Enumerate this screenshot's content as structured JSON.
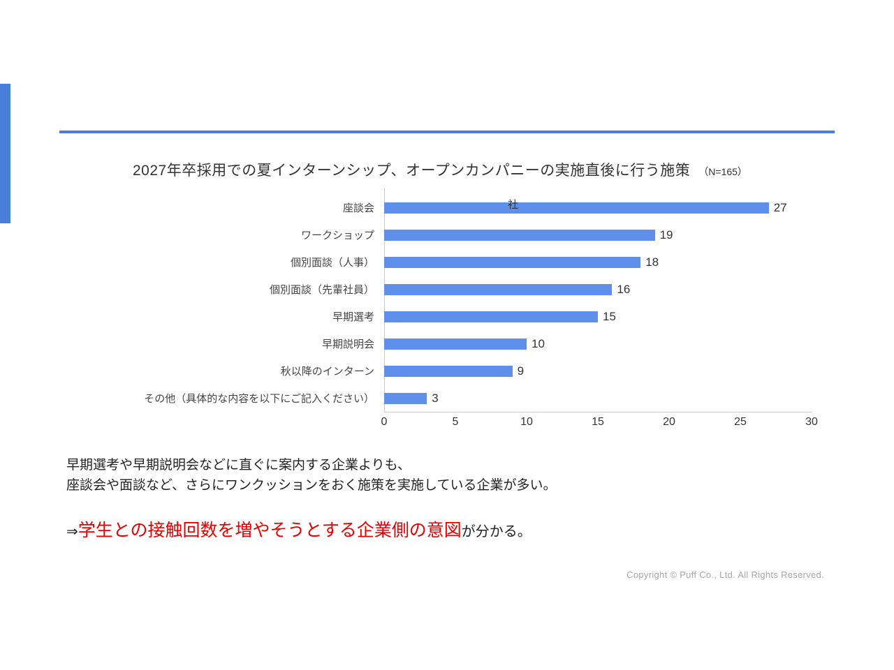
{
  "slide": {
    "title": "2027年卒採用での夏インターンシップ、オープンカンパニーの実施直後に行う施策",
    "sample_note": "（N=165）",
    "insight_line1": "早期選考や早期説明会などに直ぐに案内する企業よりも、",
    "insight_line2": "座談会や面談など、さらにワンクッションをおく施策を実施している企業が多い。",
    "conclusion_prefix": "⇒",
    "conclusion_highlight": "学生との接触回数を増やそうとする企業側の意図",
    "conclusion_suffix": "が分かる。",
    "footer": "Copyright © Puff Co., Ltd. All Rights Reserved.",
    "axis_unit": "社"
  },
  "colors": {
    "accent_blue": "#4a7edb",
    "bar_blue": "#5e8fea",
    "highlight_red": "#e60000"
  },
  "chart_data": {
    "type": "bar",
    "orientation": "horizontal",
    "title": "2027年卒採用での夏インターンシップ、オープンカンパニーの実施直後に行う施策",
    "sample_size": 165,
    "categories": [
      "座談会",
      "ワークショップ",
      "個別面談（人事）",
      "個別面談（先輩社員）",
      "早期選考",
      "早期説明会",
      "秋以降のインターン",
      "その他（具体的な内容を以下にご記入ください）"
    ],
    "values": [
      27,
      19,
      18,
      16,
      15,
      10,
      9,
      3
    ],
    "xlabel": "社",
    "ylabel": "",
    "xlim": [
      0,
      30
    ],
    "xticks": [
      0,
      5,
      10,
      15,
      20,
      25,
      30
    ],
    "grid": false,
    "legend": false
  }
}
